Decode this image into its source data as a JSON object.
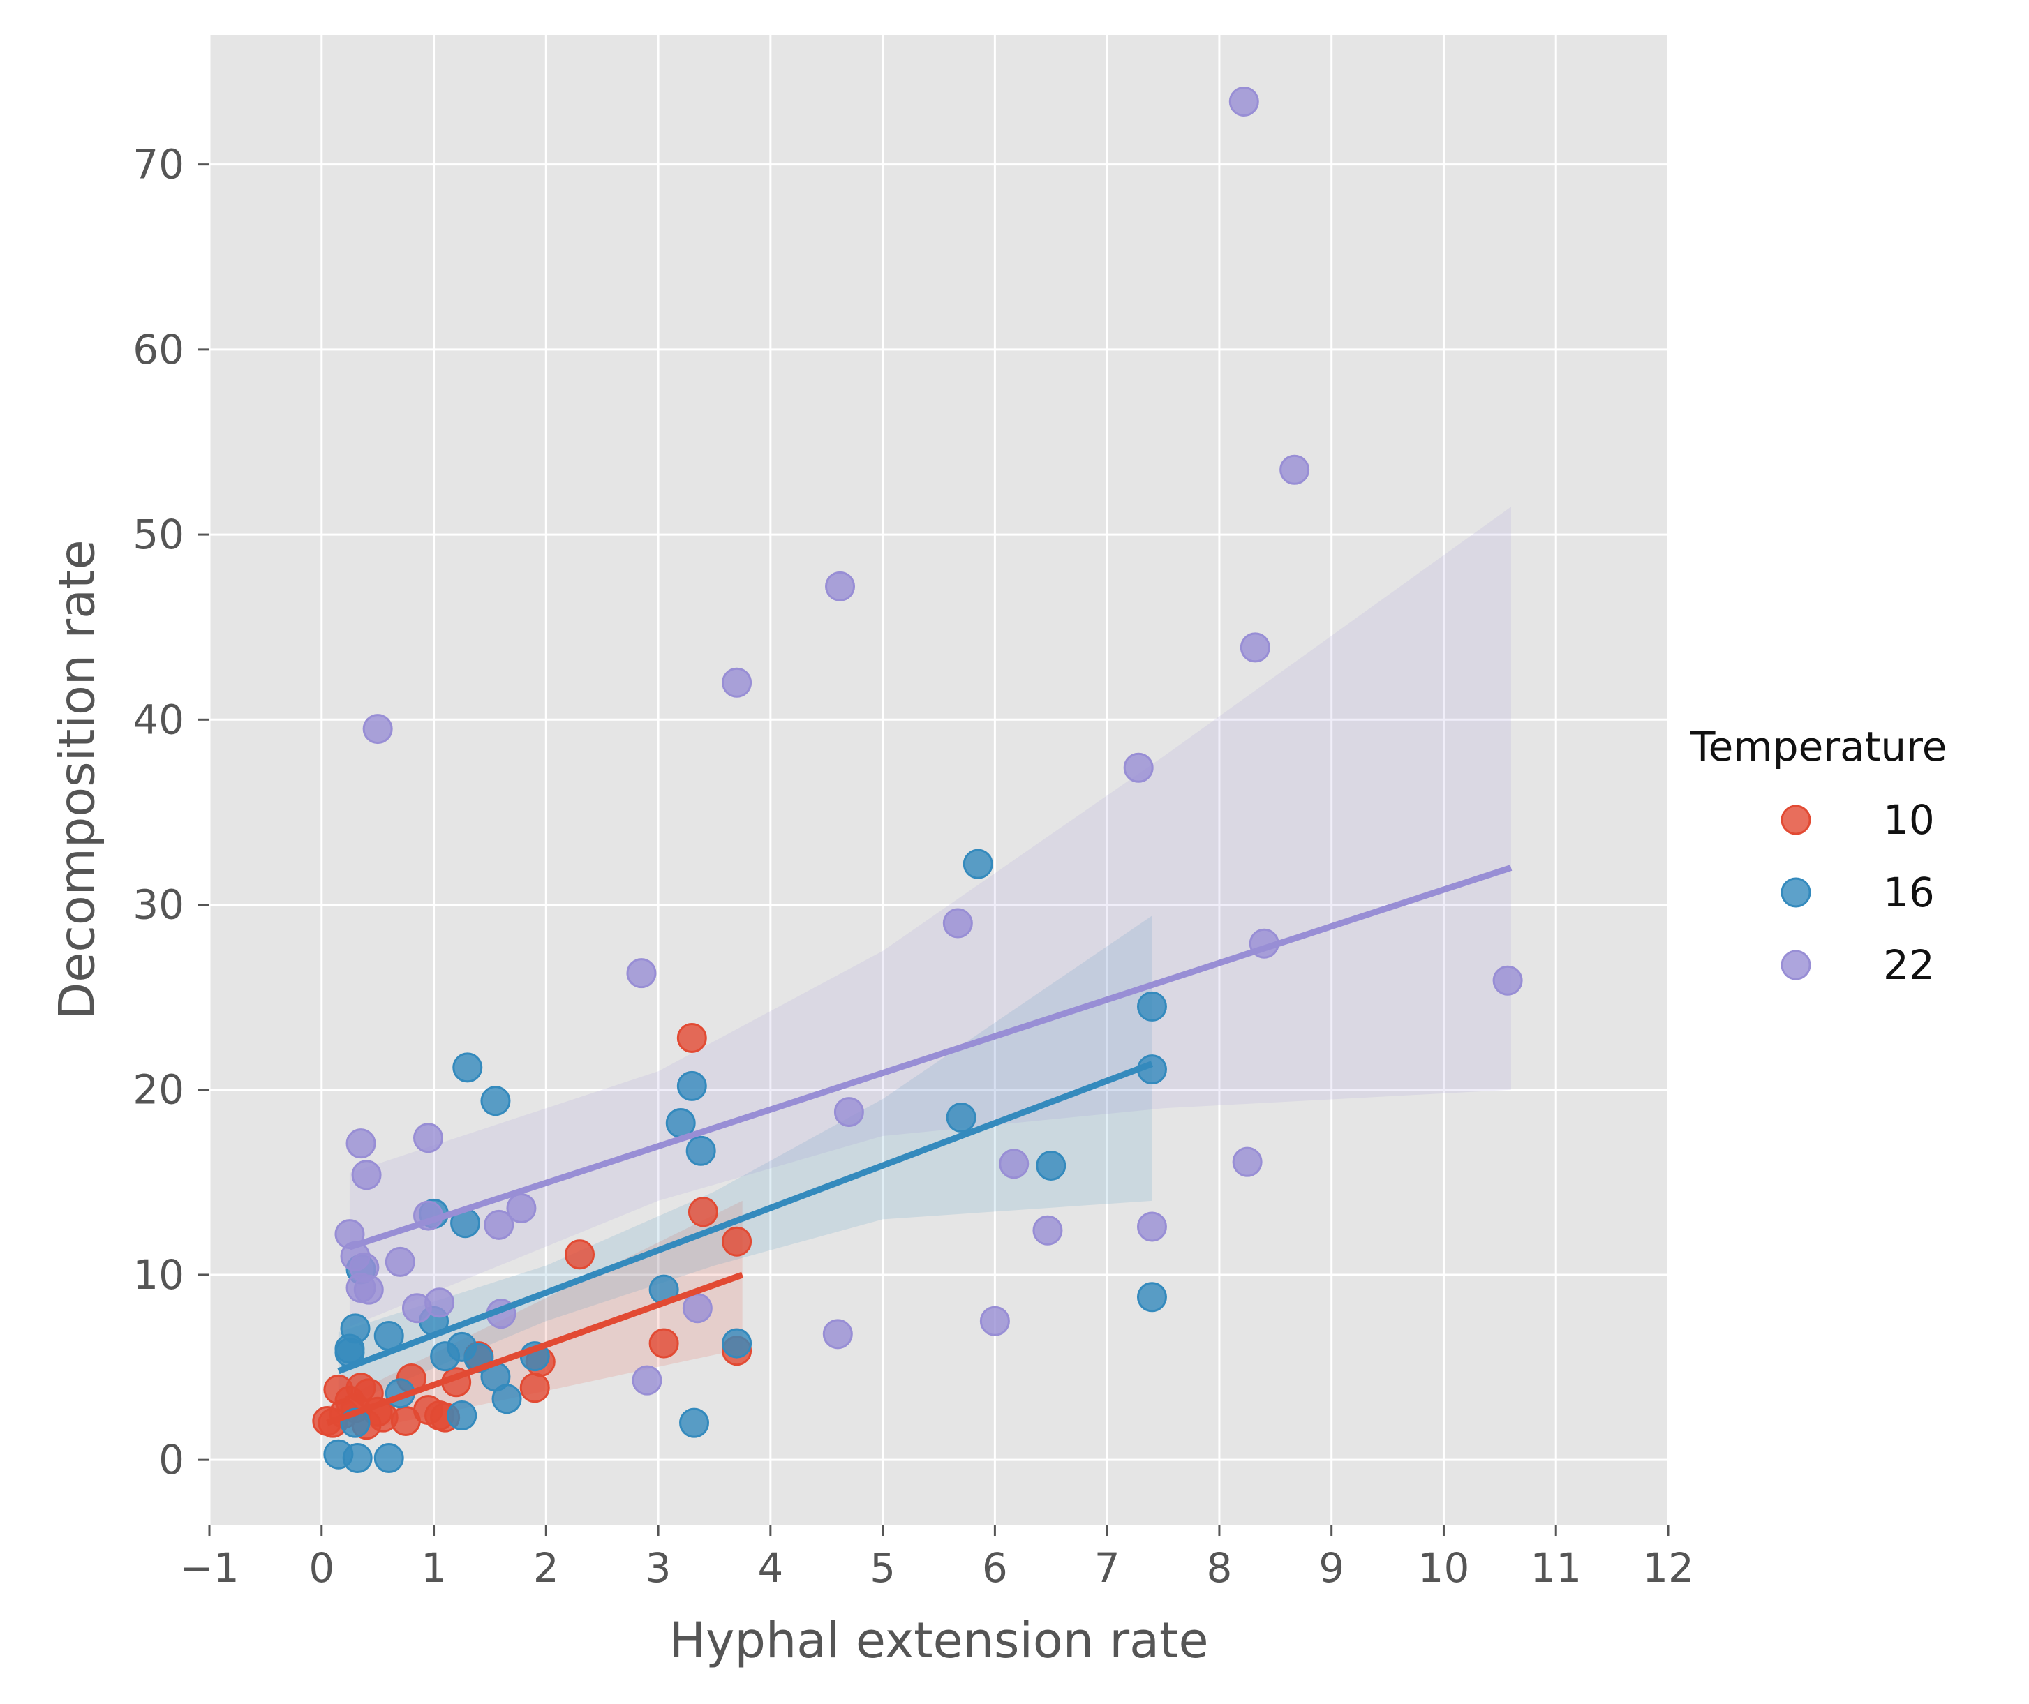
{
  "chart_data": {
    "type": "scatter",
    "xlabel": "Hyphal extension rate",
    "ylabel": "Decomposition rate",
    "xlim": [
      -1,
      12
    ],
    "ylim": [
      -3.5,
      77
    ],
    "xticks": [
      -1,
      0,
      1,
      2,
      3,
      4,
      5,
      6,
      7,
      8,
      9,
      10,
      11,
      12
    ],
    "xtick_labels": [
      "−1",
      "0",
      "1",
      "2",
      "3",
      "4",
      "5",
      "6",
      "7",
      "8",
      "9",
      "10",
      "11",
      "12"
    ],
    "yticks": [
      0,
      10,
      20,
      30,
      40,
      50,
      60,
      70
    ],
    "ytick_labels": [
      "0",
      "10",
      "20",
      "30",
      "40",
      "50",
      "60",
      "70"
    ],
    "grid": true,
    "legend": {
      "title": "Temperature",
      "placement": "right"
    },
    "series": [
      {
        "name": "10",
        "color": "#E24A33",
        "points": [
          [
            0.05,
            2.1
          ],
          [
            0.1,
            2.0
          ],
          [
            0.15,
            3.8
          ],
          [
            0.2,
            2.5
          ],
          [
            0.25,
            3.2
          ],
          [
            0.3,
            2.8
          ],
          [
            0.35,
            3.9
          ],
          [
            0.4,
            1.9
          ],
          [
            0.42,
            3.6
          ],
          [
            0.5,
            2.6
          ],
          [
            0.55,
            2.3
          ],
          [
            0.75,
            2.1
          ],
          [
            0.8,
            4.4
          ],
          [
            0.95,
            2.7
          ],
          [
            1.05,
            2.4
          ],
          [
            1.1,
            2.3
          ],
          [
            1.2,
            4.2
          ],
          [
            1.4,
            5.6
          ],
          [
            1.9,
            3.9
          ],
          [
            1.95,
            5.3
          ],
          [
            2.3,
            11.1
          ],
          [
            3.05,
            6.3
          ],
          [
            3.3,
            22.8
          ],
          [
            3.4,
            13.4
          ],
          [
            3.7,
            5.9
          ],
          [
            3.7,
            11.8
          ]
        ],
        "fit": {
          "x": [
            0.05,
            3.75
          ],
          "y": [
            2.0,
            10.0
          ]
        },
        "ci_band": {
          "x": [
            0.05,
            3.75
          ],
          "lower": [
            1.2,
            6.0
          ],
          "upper": [
            2.9,
            14.0
          ]
        }
      },
      {
        "name": "16",
        "color": "#348ABD",
        "points": [
          [
            0.15,
            0.3
          ],
          [
            0.25,
            6.0
          ],
          [
            0.25,
            5.8
          ],
          [
            0.3,
            2.0
          ],
          [
            0.3,
            7.1
          ],
          [
            0.32,
            0.1
          ],
          [
            0.35,
            10.3
          ],
          [
            0.6,
            6.7
          ],
          [
            0.6,
            0.1
          ],
          [
            0.7,
            3.6
          ],
          [
            1.0,
            13.3
          ],
          [
            1.0,
            7.5
          ],
          [
            1.1,
            5.6
          ],
          [
            1.25,
            2.4
          ],
          [
            1.25,
            6.1
          ],
          [
            1.28,
            12.8
          ],
          [
            1.3,
            21.2
          ],
          [
            1.4,
            5.5
          ],
          [
            1.55,
            19.4
          ],
          [
            1.55,
            4.5
          ],
          [
            1.65,
            3.3
          ],
          [
            1.9,
            5.6
          ],
          [
            3.05,
            9.2
          ],
          [
            3.2,
            18.2
          ],
          [
            3.3,
            20.2
          ],
          [
            3.32,
            2.0
          ],
          [
            3.38,
            16.7
          ],
          [
            3.7,
            6.3
          ],
          [
            5.7,
            18.5
          ],
          [
            5.85,
            32.2
          ],
          [
            6.5,
            15.9
          ],
          [
            7.4,
            24.5
          ],
          [
            7.4,
            21.1
          ],
          [
            7.4,
            8.8
          ]
        ],
        "fit": {
          "x": [
            0.15,
            7.4
          ],
          "y": [
            4.8,
            21.4
          ]
        },
        "ci_band": {
          "x": [
            0.15,
            2.0,
            3.5,
            5.0,
            7.4
          ],
          "lower": [
            2.8,
            7.5,
            10.5,
            13.0,
            14.0
          ],
          "upper": [
            6.9,
            10.5,
            14.5,
            19.5,
            29.4
          ]
        }
      },
      {
        "name": "22",
        "color": "#988ED5",
        "points": [
          [
            0.25,
            12.2
          ],
          [
            0.3,
            11.0
          ],
          [
            0.35,
            17.1
          ],
          [
            0.35,
            9.3
          ],
          [
            0.38,
            10.4
          ],
          [
            0.4,
            15.4
          ],
          [
            0.42,
            9.2
          ],
          [
            0.5,
            39.5
          ],
          [
            0.7,
            10.7
          ],
          [
            0.85,
            8.2
          ],
          [
            0.95,
            17.4
          ],
          [
            0.95,
            13.2
          ],
          [
            1.05,
            8.5
          ],
          [
            1.58,
            12.7
          ],
          [
            1.6,
            7.9
          ],
          [
            1.78,
            13.6
          ],
          [
            2.85,
            26.3
          ],
          [
            2.9,
            4.3
          ],
          [
            3.35,
            8.2
          ],
          [
            3.7,
            42.0
          ],
          [
            4.6,
            6.8
          ],
          [
            4.62,
            47.2
          ],
          [
            4.7,
            18.8
          ],
          [
            5.67,
            29.0
          ],
          [
            6.0,
            7.5
          ],
          [
            6.17,
            16.0
          ],
          [
            6.47,
            12.4
          ],
          [
            7.28,
            37.4
          ],
          [
            7.4,
            12.6
          ],
          [
            8.22,
            73.4
          ],
          [
            8.25,
            16.1
          ],
          [
            8.32,
            43.9
          ],
          [
            8.4,
            27.9
          ],
          [
            8.67,
            53.5
          ],
          [
            10.57,
            25.9
          ]
        ],
        "fit": {
          "x": [
            0.25,
            10.6
          ],
          "y": [
            11.5,
            32.0
          ]
        },
        "ci_band": {
          "x": [
            0.25,
            3.0,
            5.0,
            7.5,
            10.6
          ],
          "lower": [
            7.2,
            14.0,
            17.5,
            19.0,
            20.0
          ],
          "upper": [
            15.5,
            21.0,
            27.5,
            38.0,
            51.5
          ]
        }
      }
    ]
  }
}
